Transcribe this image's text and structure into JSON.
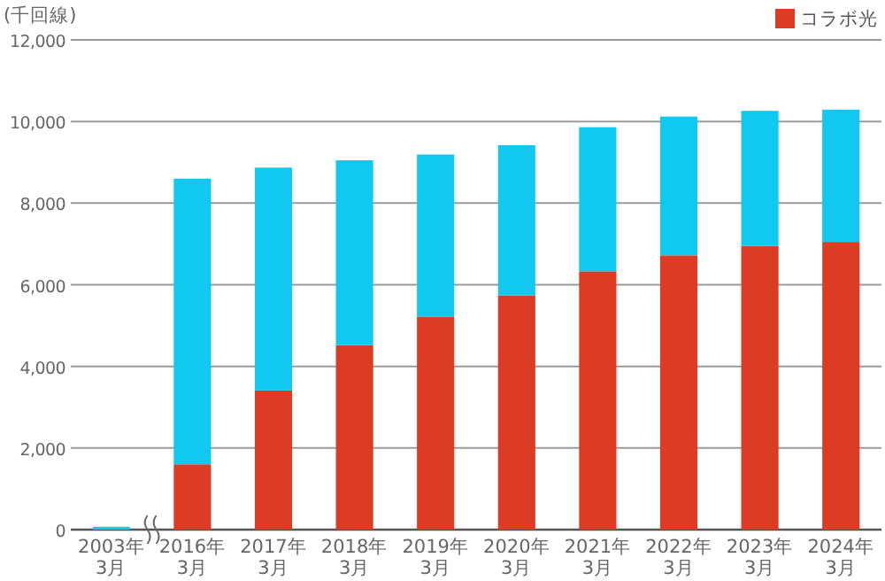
{
  "chart_data": {
    "type": "bar",
    "stacked": true,
    "ylabel": "(千回線)",
    "categories": [
      "2003年\n3月",
      "2016年\n3月",
      "2017年\n3月",
      "2018年\n3月",
      "2019年\n3月",
      "2020年\n3月",
      "2021年\n3月",
      "2022年\n3月",
      "2023年\n3月",
      "2024年\n3月"
    ],
    "series": [
      {
        "name": "コラボ光",
        "color": "#dc3c23",
        "values": [
          0,
          1600,
          3410,
          4520,
          5220,
          5740,
          6330,
          6720,
          6950,
          7050
        ]
      },
      {
        "color": "#10c8f0",
        "values": [
          70,
          7000,
          5460,
          4530,
          3970,
          3680,
          3530,
          3400,
          3310,
          3240
        ]
      }
    ],
    "ylim": [
      0,
      12000
    ],
    "yticks": [
      {
        "value": 0,
        "label": "0"
      },
      {
        "value": 2000,
        "label": "2,000"
      },
      {
        "value": 4000,
        "label": "4,000"
      },
      {
        "value": 6000,
        "label": "6,000"
      },
      {
        "value": 8000,
        "label": "8,000"
      },
      {
        "value": 10000,
        "label": "10,000"
      },
      {
        "value": 12000,
        "label": "12,000"
      }
    ],
    "grid": "y",
    "legend": "top right"
  }
}
